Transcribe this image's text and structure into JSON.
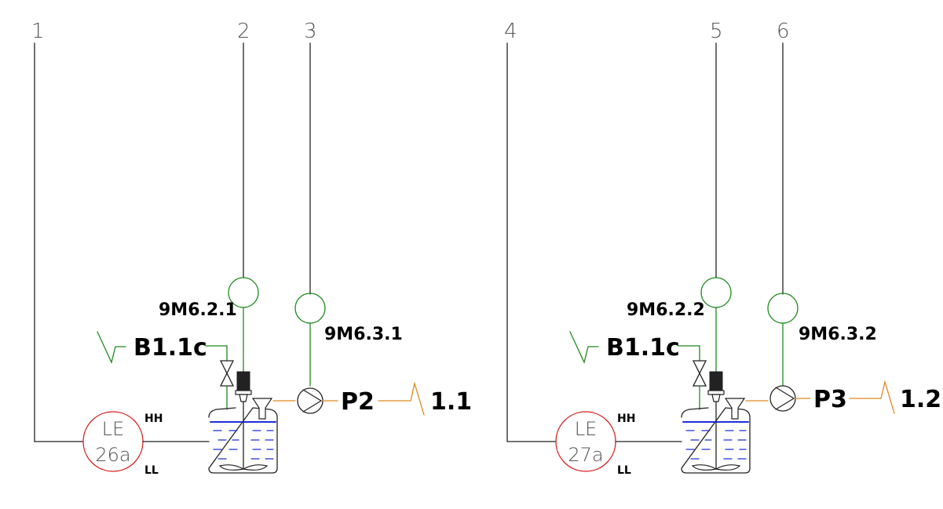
{
  "colors": {
    "line": "#222222",
    "green": "#1f8a1f",
    "orange": "#e08a1e",
    "red": "#d92020",
    "blue": "#1f2fd6"
  },
  "units": [
    {
      "line_labels": [
        "1",
        "2",
        "3"
      ],
      "level_element": {
        "top": "LE",
        "bottom": "26a"
      },
      "level_high": "HH",
      "level_low": "LL",
      "motor_tag": "9M6.2.1",
      "pump_motor_tag": "9M6.3.1",
      "valve_ref": "B1.1c",
      "pump_tag": "P2",
      "outlet_ref": "1.1"
    },
    {
      "line_labels": [
        "4",
        "5",
        "6"
      ],
      "level_element": {
        "top": "LE",
        "bottom": "27a"
      },
      "level_high": "HH",
      "level_low": "LL",
      "motor_tag": "9M6.2.2",
      "pump_motor_tag": "9M6.3.2",
      "valve_ref": "B1.1c",
      "pump_tag": "P3",
      "outlet_ref": "1.2"
    }
  ]
}
